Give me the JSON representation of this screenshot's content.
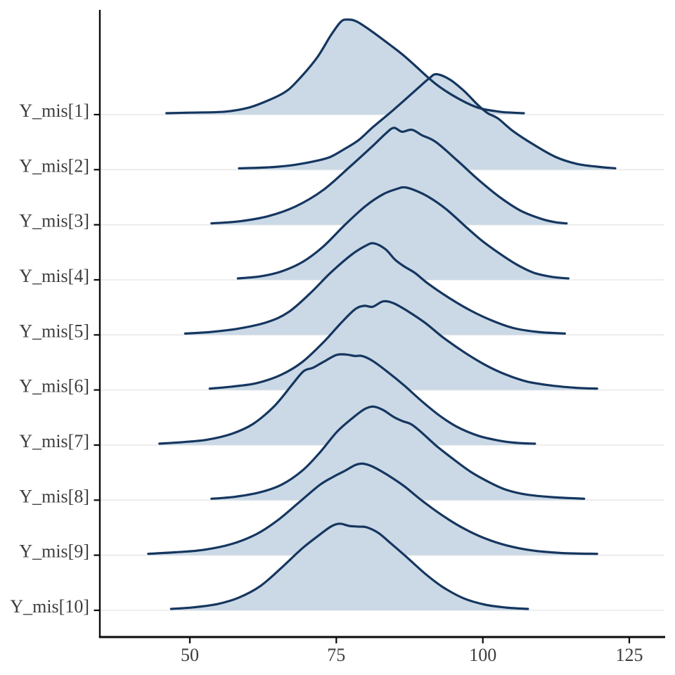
{
  "figure": {
    "title": "",
    "description_labels": {
      "x_axis_title": "",
      "y_axis_title": ""
    }
  },
  "chart_data": {
    "type": "ridgeline",
    "subtype": "area-densities",
    "title": "",
    "xlabel": "",
    "ylabel": "",
    "legend": "none",
    "grid": "horizontal-light",
    "x_ticks": [
      50,
      75,
      100,
      125
    ],
    "x_tick_labels": [
      "50",
      "75",
      "100",
      "125"
    ],
    "x_range_shown": [
      34.5,
      131
    ],
    "ridge_overlap_rows": 1.7,
    "colors": {
      "line": "#15365f",
      "fill": "#cbd9e6",
      "grid": "#ebebeb",
      "axis": "#0a0a0a",
      "text": "#3d3d3d"
    },
    "parameters": [
      {
        "name": "Y_mis[1]",
        "points": [
          [
            46.0,
            0.014
          ],
          [
            50.0,
            0.02
          ],
          [
            56.0,
            0.03
          ],
          [
            60.0,
            0.07
          ],
          [
            63.2,
            0.14
          ],
          [
            66.0,
            0.22
          ],
          [
            68.0,
            0.32
          ],
          [
            71.6,
            0.57
          ],
          [
            74.0,
            0.8
          ],
          [
            75.8,
            0.945
          ],
          [
            77.0,
            0.965
          ],
          [
            78.5,
            0.945
          ],
          [
            81.2,
            0.84
          ],
          [
            84.8,
            0.68
          ],
          [
            86.5,
            0.6
          ],
          [
            88.4,
            0.5
          ],
          [
            92.0,
            0.31
          ],
          [
            95.6,
            0.17
          ],
          [
            99.2,
            0.07
          ],
          [
            102.8,
            0.03
          ],
          [
            105.0,
            0.02
          ],
          [
            107.0,
            0.014
          ]
        ]
      },
      {
        "name": "Y_mis[2]",
        "points": [
          [
            58.4,
            0.014
          ],
          [
            62.0,
            0.02
          ],
          [
            65.0,
            0.03
          ],
          [
            68.0,
            0.05
          ],
          [
            71.6,
            0.09
          ],
          [
            74.0,
            0.13
          ],
          [
            76.4,
            0.21
          ],
          [
            78.8,
            0.3
          ],
          [
            81.2,
            0.43
          ],
          [
            84.8,
            0.61
          ],
          [
            88.4,
            0.8
          ],
          [
            90.8,
            0.925
          ],
          [
            92.1,
            0.97
          ],
          [
            94.4,
            0.915
          ],
          [
            96.8,
            0.8
          ],
          [
            99.2,
            0.655
          ],
          [
            100.8,
            0.575
          ],
          [
            102.6,
            0.52
          ],
          [
            105.2,
            0.39
          ],
          [
            108.8,
            0.25
          ],
          [
            112.4,
            0.13
          ],
          [
            116.0,
            0.06
          ],
          [
            119.6,
            0.03
          ],
          [
            122.6,
            0.014
          ]
        ]
      },
      {
        "name": "Y_mis[3]",
        "points": [
          [
            53.7,
            0.014
          ],
          [
            58.4,
            0.035
          ],
          [
            63.2,
            0.085
          ],
          [
            68.0,
            0.185
          ],
          [
            72.8,
            0.355
          ],
          [
            77.6,
            0.605
          ],
          [
            81.2,
            0.8
          ],
          [
            83.4,
            0.925
          ],
          [
            84.8,
            0.985
          ],
          [
            86.2,
            0.945
          ],
          [
            87.9,
            0.965
          ],
          [
            89.6,
            0.91
          ],
          [
            92.0,
            0.84
          ],
          [
            95.6,
            0.655
          ],
          [
            99.2,
            0.46
          ],
          [
            102.8,
            0.285
          ],
          [
            106.4,
            0.145
          ],
          [
            110.0,
            0.06
          ],
          [
            112.5,
            0.025
          ],
          [
            114.3,
            0.014
          ]
        ]
      },
      {
        "name": "Y_mis[4]",
        "points": [
          [
            58.2,
            0.014
          ],
          [
            62.0,
            0.035
          ],
          [
            65.6,
            0.085
          ],
          [
            69.2,
            0.18
          ],
          [
            72.8,
            0.34
          ],
          [
            76.4,
            0.555
          ],
          [
            80.0,
            0.75
          ],
          [
            83.0,
            0.87
          ],
          [
            85.4,
            0.925
          ],
          [
            86.6,
            0.94
          ],
          [
            88.4,
            0.91
          ],
          [
            90.8,
            0.84
          ],
          [
            93.8,
            0.715
          ],
          [
            96.8,
            0.555
          ],
          [
            99.8,
            0.4
          ],
          [
            102.8,
            0.27
          ],
          [
            105.8,
            0.155
          ],
          [
            108.8,
            0.07
          ],
          [
            111.8,
            0.03
          ],
          [
            114.6,
            0.014
          ]
        ]
      },
      {
        "name": "Y_mis[5]",
        "points": [
          [
            49.2,
            0.014
          ],
          [
            53.6,
            0.03
          ],
          [
            58.4,
            0.065
          ],
          [
            63.2,
            0.13
          ],
          [
            66.8,
            0.23
          ],
          [
            70.4,
            0.415
          ],
          [
            74.0,
            0.63
          ],
          [
            77.6,
            0.815
          ],
          [
            80.0,
            0.905
          ],
          [
            81.4,
            0.93
          ],
          [
            83.4,
            0.87
          ],
          [
            85.0,
            0.765
          ],
          [
            86.6,
            0.695
          ],
          [
            88.4,
            0.63
          ],
          [
            90.8,
            0.515
          ],
          [
            94.4,
            0.37
          ],
          [
            98.0,
            0.245
          ],
          [
            101.6,
            0.145
          ],
          [
            105.2,
            0.07
          ],
          [
            109.4,
            0.03
          ],
          [
            114.0,
            0.014
          ]
        ]
      },
      {
        "name": "Y_mis[6]",
        "points": [
          [
            53.4,
            0.014
          ],
          [
            57.2,
            0.035
          ],
          [
            61.4,
            0.07
          ],
          [
            65.6,
            0.155
          ],
          [
            69.2,
            0.285
          ],
          [
            72.8,
            0.485
          ],
          [
            75.8,
            0.68
          ],
          [
            78.2,
            0.82
          ],
          [
            79.8,
            0.855
          ],
          [
            81.2,
            0.845
          ],
          [
            83.0,
            0.9
          ],
          [
            84.8,
            0.88
          ],
          [
            87.2,
            0.8
          ],
          [
            90.2,
            0.68
          ],
          [
            93.2,
            0.535
          ],
          [
            96.8,
            0.385
          ],
          [
            100.4,
            0.255
          ],
          [
            104.0,
            0.155
          ],
          [
            107.6,
            0.085
          ],
          [
            111.8,
            0.045
          ],
          [
            116.0,
            0.022
          ],
          [
            119.5,
            0.014
          ]
        ]
      },
      {
        "name": "Y_mis[7]",
        "points": [
          [
            44.8,
            0.014
          ],
          [
            48.8,
            0.03
          ],
          [
            53.0,
            0.055
          ],
          [
            57.2,
            0.115
          ],
          [
            60.8,
            0.215
          ],
          [
            64.4,
            0.395
          ],
          [
            67.4,
            0.61
          ],
          [
            69.4,
            0.75
          ],
          [
            71.0,
            0.785
          ],
          [
            72.8,
            0.845
          ],
          [
            75.0,
            0.915
          ],
          [
            76.6,
            0.92
          ],
          [
            78.2,
            0.905
          ],
          [
            79.4,
            0.905
          ],
          [
            81.2,
            0.855
          ],
          [
            83.6,
            0.75
          ],
          [
            86.6,
            0.605
          ],
          [
            89.6,
            0.445
          ],
          [
            92.6,
            0.3
          ],
          [
            95.6,
            0.185
          ],
          [
            99.2,
            0.095
          ],
          [
            102.8,
            0.045
          ],
          [
            105.8,
            0.022
          ],
          [
            108.9,
            0.014
          ]
        ]
      },
      {
        "name": "Y_mis[8]",
        "points": [
          [
            53.7,
            0.014
          ],
          [
            57.8,
            0.035
          ],
          [
            62.0,
            0.08
          ],
          [
            65.6,
            0.155
          ],
          [
            69.2,
            0.3
          ],
          [
            72.2,
            0.485
          ],
          [
            75.2,
            0.7
          ],
          [
            78.2,
            0.855
          ],
          [
            80.0,
            0.93
          ],
          [
            81.4,
            0.95
          ],
          [
            83.0,
            0.915
          ],
          [
            84.8,
            0.845
          ],
          [
            86.2,
            0.805
          ],
          [
            87.8,
            0.77
          ],
          [
            89.6,
            0.685
          ],
          [
            92.0,
            0.555
          ],
          [
            95.0,
            0.415
          ],
          [
            98.0,
            0.285
          ],
          [
            101.0,
            0.185
          ],
          [
            104.0,
            0.105
          ],
          [
            107.6,
            0.055
          ],
          [
            112.4,
            0.028
          ],
          [
            117.3,
            0.014
          ]
        ]
      },
      {
        "name": "Y_mis[9]",
        "points": [
          [
            42.9,
            0.014
          ],
          [
            47.6,
            0.03
          ],
          [
            52.4,
            0.055
          ],
          [
            57.2,
            0.115
          ],
          [
            61.4,
            0.215
          ],
          [
            65.0,
            0.355
          ],
          [
            68.6,
            0.535
          ],
          [
            72.2,
            0.715
          ],
          [
            74.6,
            0.8
          ],
          [
            76.4,
            0.855
          ],
          [
            78.2,
            0.915
          ],
          [
            79.5,
            0.93
          ],
          [
            81.2,
            0.9
          ],
          [
            83.6,
            0.82
          ],
          [
            86.6,
            0.7
          ],
          [
            89.6,
            0.555
          ],
          [
            93.2,
            0.4
          ],
          [
            96.8,
            0.27
          ],
          [
            100.4,
            0.17
          ],
          [
            104.0,
            0.1
          ],
          [
            108.2,
            0.05
          ],
          [
            113.6,
            0.022
          ],
          [
            119.5,
            0.014
          ]
        ]
      },
      {
        "name": "Y_mis[10]",
        "points": [
          [
            46.8,
            0.014
          ],
          [
            50.6,
            0.03
          ],
          [
            54.8,
            0.065
          ],
          [
            58.4,
            0.13
          ],
          [
            62.0,
            0.245
          ],
          [
            65.6,
            0.43
          ],
          [
            69.2,
            0.63
          ],
          [
            72.2,
            0.77
          ],
          [
            74.2,
            0.855
          ],
          [
            75.6,
            0.88
          ],
          [
            77.2,
            0.857
          ],
          [
            78.8,
            0.85
          ],
          [
            80.2,
            0.843
          ],
          [
            82.2,
            0.785
          ],
          [
            84.2,
            0.685
          ],
          [
            87.2,
            0.53
          ],
          [
            90.2,
            0.37
          ],
          [
            93.2,
            0.235
          ],
          [
            96.8,
            0.12
          ],
          [
            100.4,
            0.057
          ],
          [
            104.0,
            0.028
          ],
          [
            107.7,
            0.014
          ]
        ]
      }
    ]
  }
}
